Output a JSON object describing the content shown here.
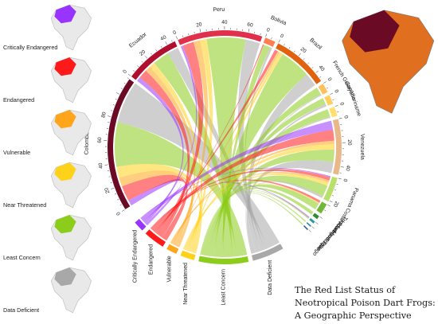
{
  "chart_data": {
    "type": "chord",
    "title_line1": "The Red List Status of",
    "title_line2": "Neotropical Poison Dart Frogs:",
    "title_line3": "A Geographic Perspective",
    "status_colors": {
      "Critically Endangered": "#9933ff",
      "Endangered": "#ff1a1a",
      "Vulnerable": "#ffa51a",
      "Near Threatened": "#ffd21a",
      "Least Concern": "#8ccc1a",
      "Data Deficient": "#a8a8a8"
    },
    "categories": [
      {
        "name": "Critically Endangered",
        "color": "#9933ff",
        "value": 3
      },
      {
        "name": "Endangered",
        "color": "#ff1a1a",
        "value": 6
      },
      {
        "name": "Vulnerable",
        "color": "#ffa51a",
        "value": 3
      },
      {
        "name": "Near Threatened",
        "color": "#ffd21a",
        "value": 4
      },
      {
        "name": "Least Concern",
        "color": "#8ccc1a",
        "value": 14
      },
      {
        "name": "Data Deficient",
        "color": "#a8a8a8",
        "value": 9
      }
    ],
    "countries": [
      {
        "name": "Bolivia",
        "value": 9,
        "color": "#ff7f50",
        "ticks": [
          0
        ]
      },
      {
        "name": "Brazil",
        "value": 48,
        "color": "#e0620f",
        "ticks": [
          0,
          20,
          40
        ]
      },
      {
        "name": "French Guiana",
        "value": 8,
        "color": "#ffc060",
        "ticks": [
          0
        ]
      },
      {
        "name": "Guyana",
        "value": 8,
        "color": "#ffd060",
        "ticks": [
          0
        ]
      },
      {
        "name": "Suriname",
        "value": 8,
        "color": "#ffe070",
        "ticks": [
          0
        ]
      },
      {
        "name": "Venezuela",
        "value": 47,
        "color": "#e8b888",
        "ticks": [
          0,
          20,
          40
        ]
      },
      {
        "name": "Panama",
        "value": 21,
        "color": "#b8e06a",
        "ticks": [
          0,
          20
        ]
      },
      {
        "name": "Costa Rica",
        "value": 9,
        "color": "#70b838",
        "ticks": []
      },
      {
        "name": "Nicaragua",
        "value": 3,
        "color": "#2f8f2f",
        "ticks": []
      },
      {
        "name": "Trinidad and Tobago",
        "value": 2,
        "color": "#2a9a9a",
        "ticks": []
      },
      {
        "name": "Martinique",
        "value": 1,
        "color": "#1e7ab8",
        "ticks": []
      },
      {
        "name": "USA",
        "value": 1,
        "color": "#2255aa",
        "ticks": []
      },
      {
        "name": "Colombia",
        "value": 115,
        "color": "#6b0a24",
        "ticks": [
          0,
          20,
          40,
          60,
          80
        ]
      },
      {
        "name": "Ecuador",
        "value": 47,
        "color": "#b01030",
        "ticks": [
          0,
          20,
          40
        ]
      },
      {
        "name": "Peru",
        "value": 72,
        "color": "#e0304c",
        "ticks": [
          0,
          20,
          40,
          60
        ]
      }
    ],
    "links": [
      {
        "country": "Colombia",
        "status": "Critically Endangered",
        "value": 5
      },
      {
        "country": "Colombia",
        "status": "Endangered",
        "value": 14
      },
      {
        "country": "Colombia",
        "status": "Vulnerable",
        "value": 8
      },
      {
        "country": "Colombia",
        "status": "Near Threatened",
        "value": 10
      },
      {
        "country": "Colombia",
        "status": "Least Concern",
        "value": 40
      },
      {
        "country": "Colombia",
        "status": "Data Deficient",
        "value": 38
      },
      {
        "country": "Ecuador",
        "status": "Critically Endangered",
        "value": 4
      },
      {
        "country": "Ecuador",
        "status": "Endangered",
        "value": 8
      },
      {
        "country": "Ecuador",
        "status": "Vulnerable",
        "value": 5
      },
      {
        "country": "Ecuador",
        "status": "Near Threatened",
        "value": 5
      },
      {
        "country": "Ecuador",
        "status": "Least Concern",
        "value": 15
      },
      {
        "country": "Ecuador",
        "status": "Data Deficient",
        "value": 10
      },
      {
        "country": "Peru",
        "status": "Critically Endangered",
        "value": 2
      },
      {
        "country": "Peru",
        "status": "Endangered",
        "value": 10
      },
      {
        "country": "Peru",
        "status": "Vulnerable",
        "value": 6
      },
      {
        "country": "Peru",
        "status": "Near Threatened",
        "value": 6
      },
      {
        "country": "Peru",
        "status": "Least Concern",
        "value": 35
      },
      {
        "country": "Peru",
        "status": "Data Deficient",
        "value": 13
      },
      {
        "country": "Bolivia",
        "status": "Endangered",
        "value": 1
      },
      {
        "country": "Bolivia",
        "status": "Least Concern",
        "value": 6
      },
      {
        "country": "Bolivia",
        "status": "Data Deficient",
        "value": 2
      },
      {
        "country": "Brazil",
        "status": "Endangered",
        "value": 3
      },
      {
        "country": "Brazil",
        "status": "Vulnerable",
        "value": 2
      },
      {
        "country": "Brazil",
        "status": "Near Threatened",
        "value": 3
      },
      {
        "country": "Brazil",
        "status": "Least Concern",
        "value": 28
      },
      {
        "country": "Brazil",
        "status": "Data Deficient",
        "value": 12
      },
      {
        "country": "French Guiana",
        "status": "Least Concern",
        "value": 7
      },
      {
        "country": "French Guiana",
        "status": "Data Deficient",
        "value": 1
      },
      {
        "country": "Guyana",
        "status": "Least Concern",
        "value": 6
      },
      {
        "country": "Guyana",
        "status": "Data Deficient",
        "value": 2
      },
      {
        "country": "Suriname",
        "status": "Least Concern",
        "value": 7
      },
      {
        "country": "Suriname",
        "status": "Data Deficient",
        "value": 1
      },
      {
        "country": "Venezuela",
        "status": "Critically Endangered",
        "value": 8
      },
      {
        "country": "Venezuela",
        "status": "Endangered",
        "value": 10
      },
      {
        "country": "Venezuela",
        "status": "Vulnerable",
        "value": 3
      },
      {
        "country": "Venezuela",
        "status": "Near Threatened",
        "value": 5
      },
      {
        "country": "Venezuela",
        "status": "Least Concern",
        "value": 11
      },
      {
        "country": "Venezuela",
        "status": "Data Deficient",
        "value": 10
      },
      {
        "country": "Panama",
        "status": "Critically Endangered",
        "value": 1
      },
      {
        "country": "Panama",
        "status": "Endangered",
        "value": 3
      },
      {
        "country": "Panama",
        "status": "Vulnerable",
        "value": 2
      },
      {
        "country": "Panama",
        "status": "Near Threatened",
        "value": 3
      },
      {
        "country": "Panama",
        "status": "Least Concern",
        "value": 10
      },
      {
        "country": "Panama",
        "status": "Data Deficient",
        "value": 2
      },
      {
        "country": "Costa Rica",
        "status": "Endangered",
        "value": 2
      },
      {
        "country": "Costa Rica",
        "status": "Near Threatened",
        "value": 1
      },
      {
        "country": "Costa Rica",
        "status": "Least Concern",
        "value": 6
      },
      {
        "country": "Nicaragua",
        "status": "Least Concern",
        "value": 3
      },
      {
        "country": "Trinidad and Tobago",
        "status": "Critically Endangered",
        "value": 1
      },
      {
        "country": "Trinidad and Tobago",
        "status": "Least Concern",
        "value": 1
      },
      {
        "country": "Martinique",
        "status": "Least Concern",
        "value": 1
      },
      {
        "country": "USA",
        "status": "Least Concern",
        "value": 1
      }
    ]
  }
}
